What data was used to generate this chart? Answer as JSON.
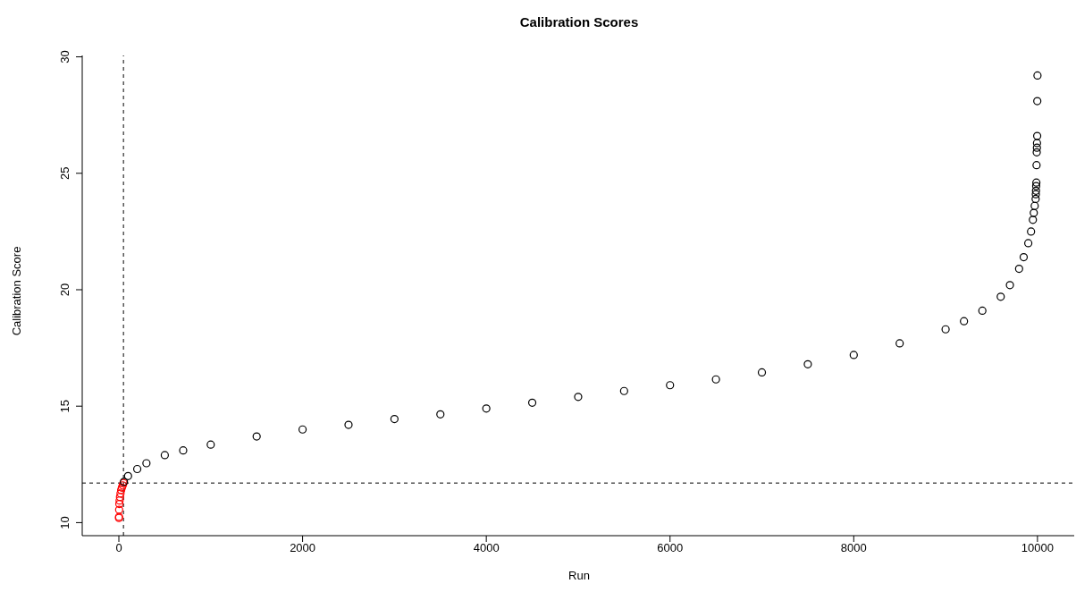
{
  "chart_data": {
    "type": "scatter",
    "title": "Calibration Scores",
    "xlabel": "Run",
    "ylabel": "Calibration Score",
    "xlim": [
      -399,
      10400
    ],
    "ylim": [
      9.44,
      30.06
    ],
    "xticks": [
      0,
      2000,
      4000,
      6000,
      8000,
      10000
    ],
    "yticks": [
      10,
      15,
      20,
      25,
      30
    ],
    "grid": false,
    "legend": false,
    "marker": "circle",
    "ref_lines": [
      {
        "axis": "x",
        "value": 50,
        "line_style": "dashed",
        "color": "#000000"
      },
      {
        "axis": "y",
        "value": 11.7,
        "line_style": "dashed",
        "color": "#000000"
      }
    ],
    "series": [
      {
        "color": "#ff0000",
        "x": [
          1,
          2,
          3,
          5,
          8,
          12,
          18,
          25,
          33,
          42,
          50
        ],
        "values": [
          10.2,
          10.25,
          10.55,
          10.8,
          10.95,
          11.1,
          11.25,
          11.4,
          11.5,
          11.6,
          11.7
        ]
      },
      {
        "color": "#000000",
        "x": [
          55,
          100,
          200,
          300,
          500,
          700,
          1000,
          1500,
          2000,
          2500,
          3000,
          3500,
          4000,
          4500,
          5000,
          5500,
          6000,
          6500,
          7000,
          7500,
          8000,
          8500,
          9000,
          9200,
          9400,
          9600,
          9700,
          9800,
          9850,
          9900,
          9930,
          9950,
          9960,
          9970,
          9980,
          9982,
          9984,
          9986,
          9988,
          9990,
          9992,
          9994,
          9995,
          9997,
          9998,
          10000
        ],
        "values": [
          11.75,
          12.0,
          12.3,
          12.55,
          12.9,
          13.1,
          13.35,
          13.7,
          14.0,
          14.2,
          14.45,
          14.65,
          14.9,
          15.15,
          15.4,
          15.65,
          15.9,
          16.15,
          16.45,
          16.8,
          17.2,
          17.7,
          18.3,
          18.65,
          19.1,
          19.7,
          20.2,
          20.9,
          21.4,
          22.0,
          22.5,
          23.0,
          23.3,
          23.6,
          23.9,
          24.1,
          24.25,
          24.45,
          24.6,
          25.35,
          25.9,
          26.1,
          26.3,
          26.6,
          28.1,
          29.2
        ]
      }
    ]
  }
}
